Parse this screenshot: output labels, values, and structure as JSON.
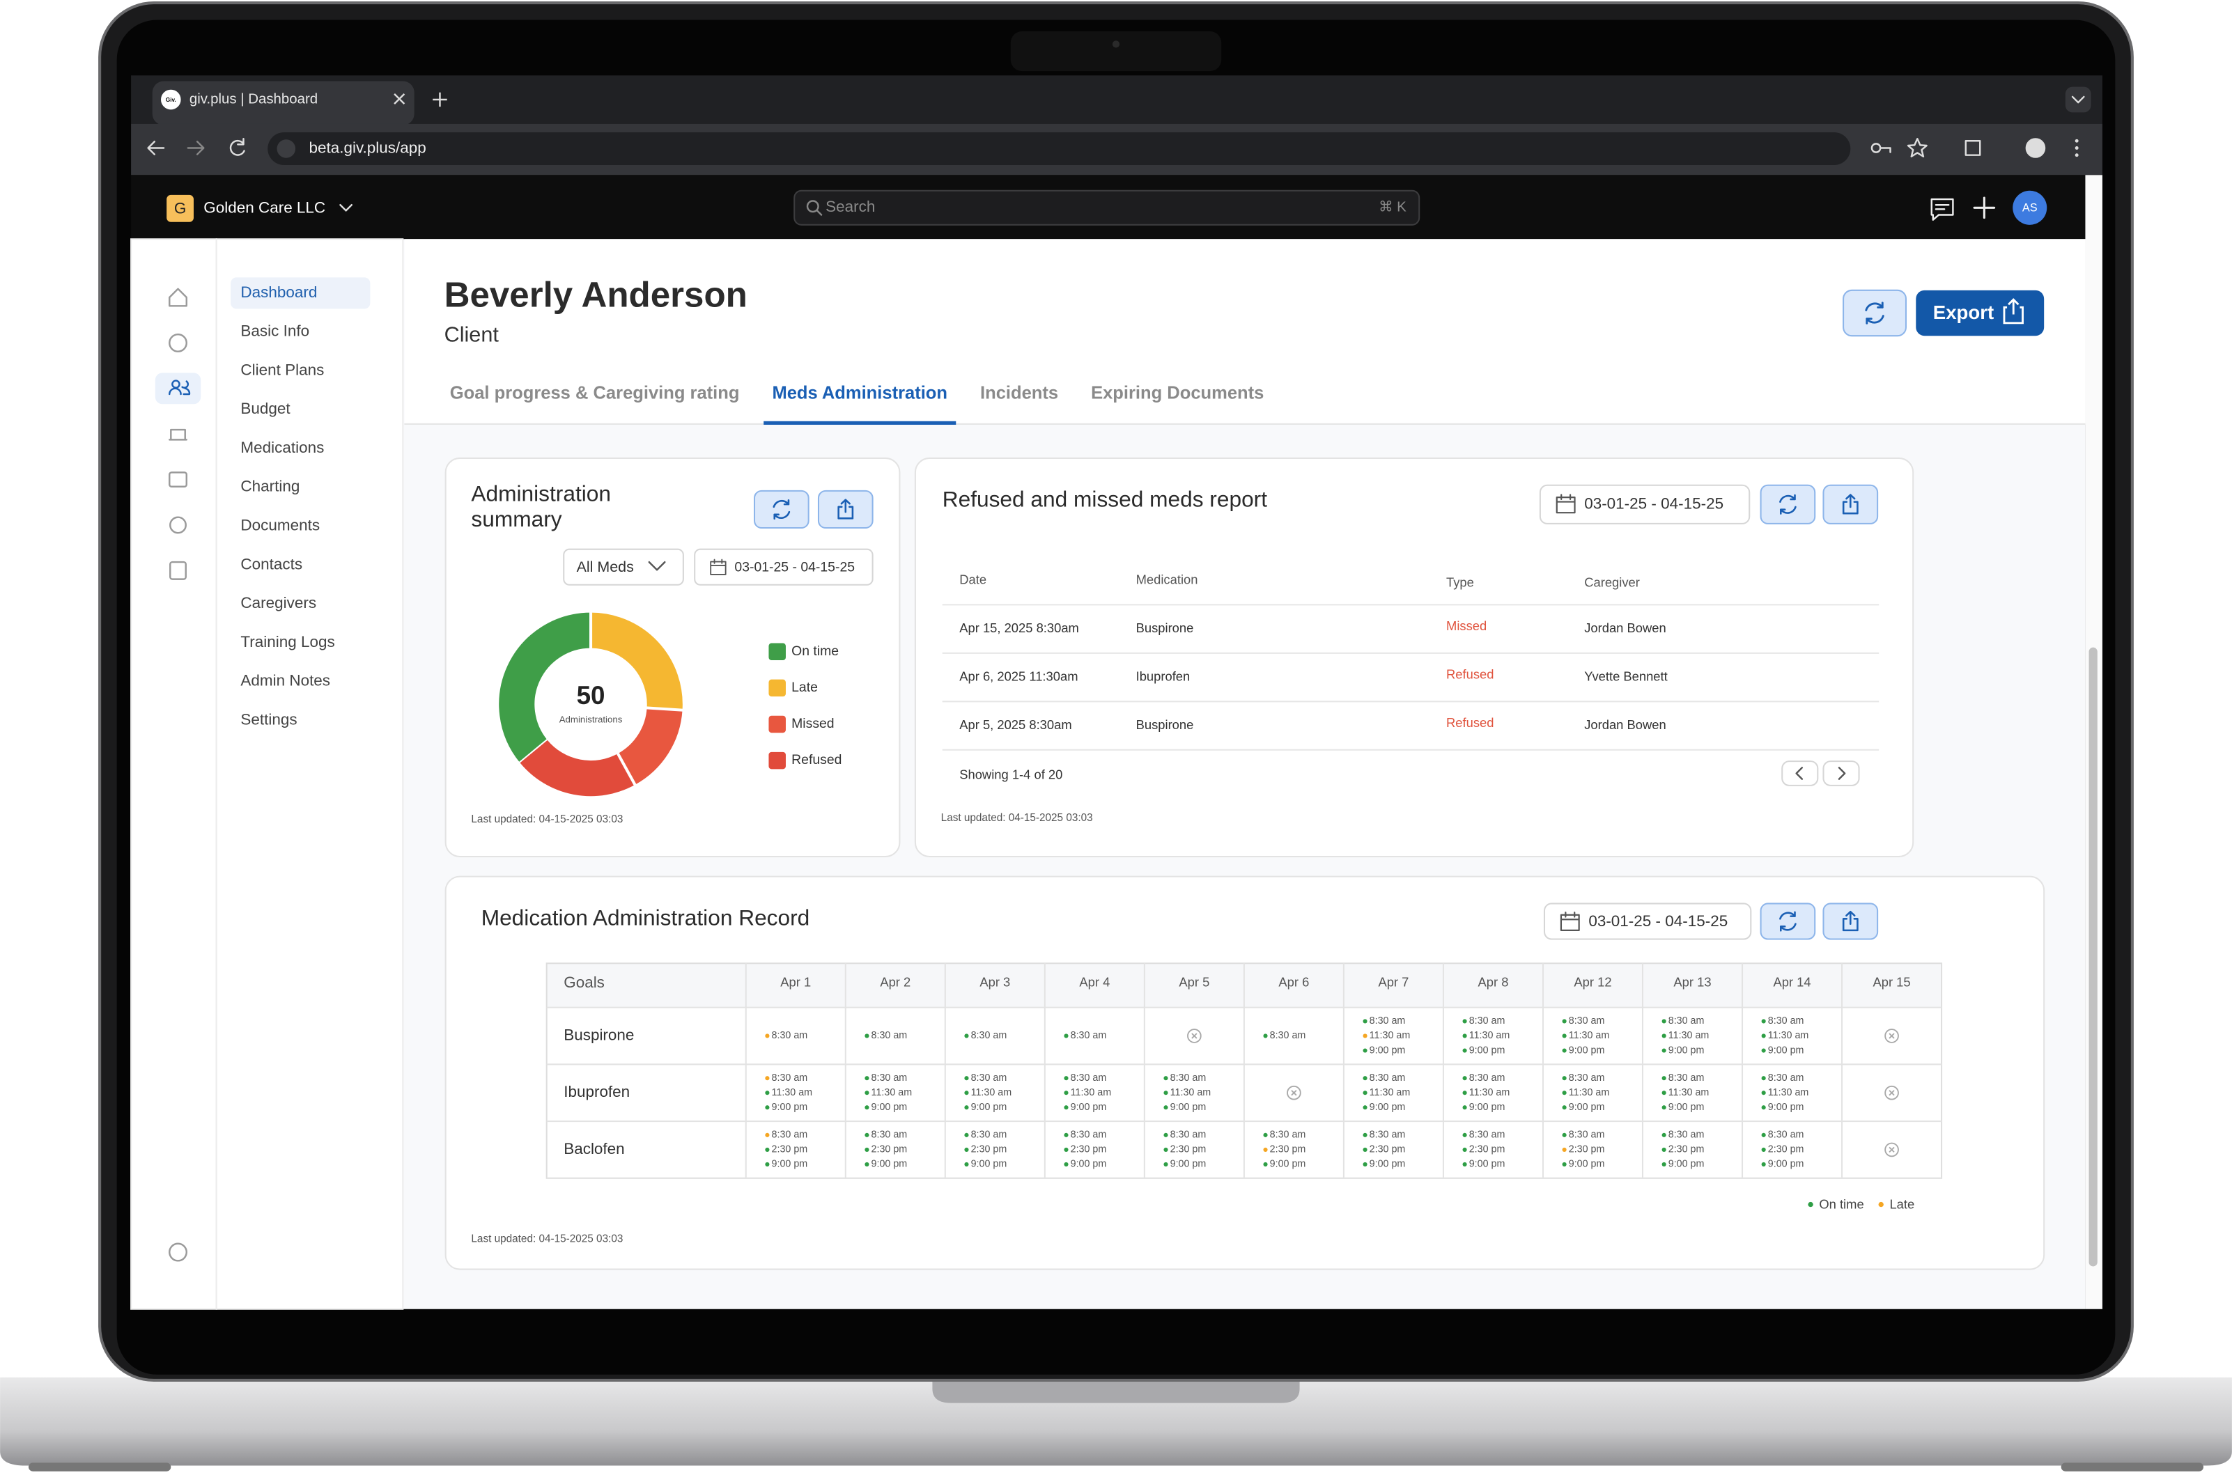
{
  "browser": {
    "favicon": "Giv.",
    "tab_title": "giv.plus | Dashboard",
    "url": "beta.giv.plus/app"
  },
  "header": {
    "org_initial": "G",
    "org": "Golden Care LLC",
    "search": "Search",
    "shortcut": "⌘ K",
    "avatar": "AS"
  },
  "nav": [
    "Dashboard",
    "Basic Info",
    "Client Plans",
    "Budget",
    "Medications",
    "Charting",
    "Documents",
    "Contacts",
    "Caregivers",
    "Training Logs",
    "Admin Notes",
    "Settings"
  ],
  "nav_active": 0,
  "client": {
    "name": "Beverly Anderson",
    "role": "Client"
  },
  "export": "Export",
  "tabs": [
    "Goal progress & Caregiving rating",
    "Meds Administration",
    "Incidents",
    "Expiring Documents"
  ],
  "active_tab": 1,
  "summary": {
    "title_lines": [
      "Administration",
      "summary"
    ],
    "filter": "All Meds",
    "date_range": "03-01-25 - 04-15-25",
    "total": 50,
    "total_label": "Administrations",
    "legend": [
      {
        "name": "On time",
        "color": "#3f9e48",
        "value": 18
      },
      {
        "name": "Late",
        "color": "#f5b731",
        "value": 13
      },
      {
        "name": "Missed",
        "color": "#e8573f",
        "value": 8
      },
      {
        "name": "Refused",
        "color": "#e14b3b",
        "value": 11
      }
    ],
    "last_updated": "Last updated:  04-15-2025 03:03"
  },
  "report": {
    "title": "Refused and missed meds report",
    "date_range": "03-01-25  - 04-15-25",
    "columns": [
      "Date",
      "Medication",
      "Type",
      "Caregiver"
    ],
    "rows": [
      [
        "Apr 15, 2025 8:30am",
        "Buspirone",
        "Missed",
        "Jordan Bowen"
      ],
      [
        "Apr 6, 2025 11:30am",
        "Ibuprofen",
        "Refused",
        "Yvette Bennett"
      ],
      [
        "Apr 5, 2025 8:30am",
        "Buspirone",
        "Refused",
        "Jordan Bowen"
      ]
    ],
    "type_color": "#e0533d",
    "showing": "Showing 1-4 of 20",
    "last_updated": "Last updated: 04-15-2025 03:03"
  },
  "mar": {
    "title": "Medication Administration Record",
    "date_range": "03-01-25 - 04-15-25",
    "columns": [
      "Goals",
      "Apr 1",
      "Apr 2",
      "Apr 3",
      "Apr 4",
      "Apr 5",
      "Apr 6",
      "Apr 7",
      "Apr 8",
      "Apr 12",
      "Apr 13",
      "Apr 14",
      "Apr 15"
    ],
    "legend": [
      {
        "name": "On time",
        "color": "#2e9e45"
      },
      {
        "name": "Late",
        "color": "#f5a623"
      }
    ],
    "rows": [
      {
        "name": "Buspirone",
        "cells": [
          [
            {
              "time": "8:30 am",
              "status": 1
            }
          ],
          [
            {
              "time": "8:30 am",
              "status": 0
            }
          ],
          [
            {
              "time": "8:30 am",
              "status": 0
            }
          ],
          [
            {
              "time": "8:30 am",
              "status": 0
            }
          ],
          null,
          [
            {
              "time": "8:30 am",
              "status": 0
            }
          ],
          [
            {
              "time": "8:30 am",
              "status": 0
            },
            {
              "time": "11:30 am",
              "status": 1
            },
            {
              "time": "9:00 pm",
              "status": 0
            }
          ],
          [
            {
              "time": "8:30 am",
              "status": 0
            },
            {
              "time": "11:30 am",
              "status": 0
            },
            {
              "time": "9:00 pm",
              "status": 0
            }
          ],
          [
            {
              "time": "8:30 am",
              "status": 0
            },
            {
              "time": "11:30 am",
              "status": 0
            },
            {
              "time": "9:00 pm",
              "status": 0
            }
          ],
          [
            {
              "time": "8:30 am",
              "status": 0
            },
            {
              "time": "11:30 am",
              "status": 0
            },
            {
              "time": "9:00 pm",
              "status": 0
            }
          ],
          [
            {
              "time": "8:30 am",
              "status": 0
            },
            {
              "time": "11:30 am",
              "status": 0
            },
            {
              "time": "9:00 pm",
              "status": 0
            }
          ],
          null
        ]
      },
      {
        "name": "Ibuprofen",
        "cells": [
          [
            {
              "time": "8:30 am",
              "status": 1
            },
            {
              "time": "11:30 am",
              "status": 0
            },
            {
              "time": "9:00 pm",
              "status": 0
            }
          ],
          [
            {
              "time": "8:30 am",
              "status": 0
            },
            {
              "time": "11:30 am",
              "status": 0
            },
            {
              "time": "9:00 pm",
              "status": 0
            }
          ],
          [
            {
              "time": "8:30 am",
              "status": 0
            },
            {
              "time": "11:30 am",
              "status": 0
            },
            {
              "time": "9:00 pm",
              "status": 0
            }
          ],
          [
            {
              "time": "8:30 am",
              "status": 0
            },
            {
              "time": "11:30 am",
              "status": 0
            },
            {
              "time": "9:00 pm",
              "status": 0
            }
          ],
          [
            {
              "time": "8:30 am",
              "status": 0
            },
            {
              "time": "11:30 am",
              "status": 0
            },
            {
              "time": "9:00 pm",
              "status": 0
            }
          ],
          null,
          [
            {
              "time": "8:30 am",
              "status": 0
            },
            {
              "time": "11:30 am",
              "status": 0
            },
            {
              "time": "9:00 pm",
              "status": 0
            }
          ],
          [
            {
              "time": "8:30 am",
              "status": 0
            },
            {
              "time": "11:30 am",
              "status": 0
            },
            {
              "time": "9:00 pm",
              "status": 0
            }
          ],
          [
            {
              "time": "8:30 am",
              "status": 0
            },
            {
              "time": "11:30 am",
              "status": 0
            },
            {
              "time": "9:00 pm",
              "status": 0
            }
          ],
          [
            {
              "time": "8:30 am",
              "status": 0
            },
            {
              "time": "11:30 am",
              "status": 0
            },
            {
              "time": "9:00 pm",
              "status": 0
            }
          ],
          [
            {
              "time": "8:30 am",
              "status": 0
            },
            {
              "time": "11:30 am",
              "status": 0
            },
            {
              "time": "9:00 pm",
              "status": 0
            }
          ],
          null
        ]
      },
      {
        "name": "Baclofen",
        "cells": [
          [
            {
              "time": "8:30 am",
              "status": 1
            },
            {
              "time": "2:30 pm",
              "status": 0
            },
            {
              "time": "9:00 pm",
              "status": 0
            }
          ],
          [
            {
              "time": "8:30 am",
              "status": 0
            },
            {
              "time": "2:30 pm",
              "status": 0
            },
            {
              "time": "9:00 pm",
              "status": 0
            }
          ],
          [
            {
              "time": "8:30 am",
              "status": 0
            },
            {
              "time": "2:30 pm",
              "status": 0
            },
            {
              "time": "9:00 pm",
              "status": 0
            }
          ],
          [
            {
              "time": "8:30 am",
              "status": 0
            },
            {
              "time": "2:30 pm",
              "status": 0
            },
            {
              "time": "9:00 pm",
              "status": 0
            }
          ],
          [
            {
              "time": "8:30 am",
              "status": 0
            },
            {
              "time": "2:30 pm",
              "status": 0
            },
            {
              "time": "9:00 pm",
              "status": 0
            }
          ],
          [
            {
              "time": "8:30 am",
              "status": 0
            },
            {
              "time": "2:30 pm",
              "status": 1
            },
            {
              "time": "9:00 pm",
              "status": 0
            }
          ],
          [
            {
              "time": "8:30 am",
              "status": 0
            },
            {
              "time": "2:30 pm",
              "status": 0
            },
            {
              "time": "9:00 pm",
              "status": 0
            }
          ],
          [
            {
              "time": "8:30 am",
              "status": 0
            },
            {
              "time": "2:30 pm",
              "status": 0
            },
            {
              "time": "9:00 pm",
              "status": 0
            }
          ],
          [
            {
              "time": "8:30 am",
              "status": 0
            },
            {
              "time": "2:30 pm",
              "status": 1
            },
            {
              "time": "9:00 pm",
              "status": 0
            }
          ],
          [
            {
              "time": "8:30 am",
              "status": 0
            },
            {
              "time": "2:30 pm",
              "status": 0
            },
            {
              "time": "9:00 pm",
              "status": 0
            }
          ],
          [
            {
              "time": "8:30 am",
              "status": 0
            },
            {
              "time": "2:30 pm",
              "status": 0
            },
            {
              "time": "9:00 pm",
              "status": 0
            }
          ],
          null
        ]
      }
    ],
    "last_updated": "Last updated: 04-15-2025 03:03"
  }
}
